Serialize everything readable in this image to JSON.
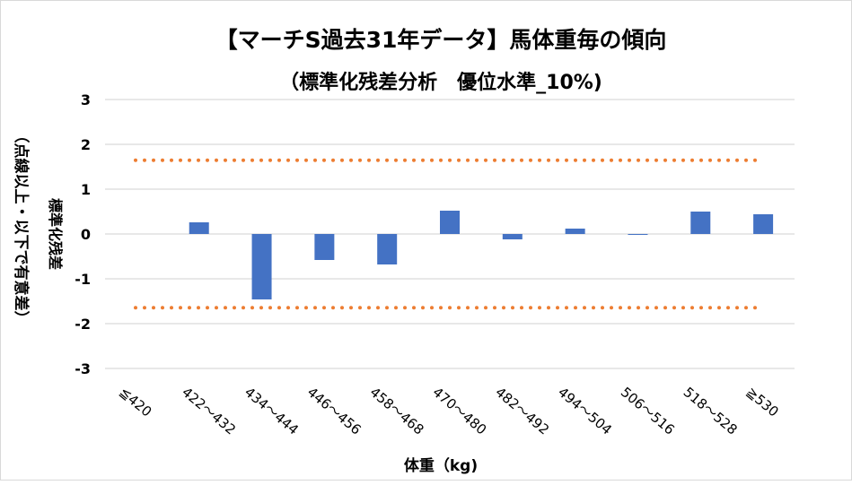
{
  "chart_data": {
    "type": "bar",
    "title": "【マーチS過去31年データ】馬体重毎の傾向",
    "subtitle": "（標準化残差分析　優位水準_10%)",
    "xlabel": "体重（kg)",
    "ylabel": "標準化残差",
    "ylabel2": "（点線以上・以下で有意差）",
    "categories": [
      "≦420",
      "422～432",
      "434～444",
      "446～456",
      "458～468",
      "470～480",
      "482～492",
      "494～504",
      "506～516",
      "518～528",
      "≧530"
    ],
    "values": [
      0,
      0.26,
      -1.46,
      -0.58,
      -0.68,
      0.52,
      -0.12,
      0.12,
      -0.02,
      0.5,
      0.44
    ],
    "ylim": [
      -3,
      3
    ],
    "yticks": [
      "3",
      "2",
      "1",
      "0",
      "-1",
      "-2",
      "-3"
    ],
    "threshold_lines": [
      1.645,
      -1.645
    ],
    "grid": true,
    "colors": {
      "bar": "#4472c4",
      "threshold": "#ed7d31",
      "grid": "#d9d9d9"
    }
  }
}
